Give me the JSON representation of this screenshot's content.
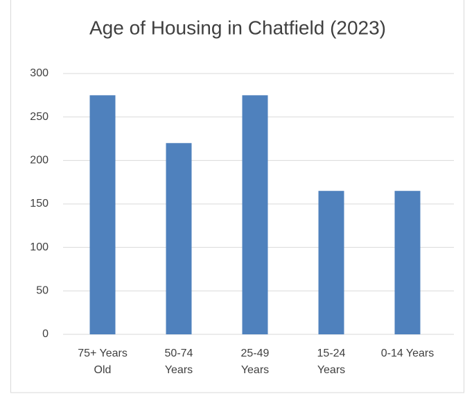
{
  "chart_data": {
    "type": "bar",
    "title": "Age of Housing in Chatfield (2023)",
    "categories": [
      "75+ Years Old",
      "50-74 Years",
      "25-49 Years",
      "15-24 Years",
      "0-14 Years"
    ],
    "values": [
      275,
      220,
      275,
      165,
      165
    ],
    "color": "#4f81bd",
    "ylim": [
      0,
      300
    ],
    "yticks": [
      0,
      50,
      100,
      150,
      200,
      250,
      300
    ],
    "grid": true
  }
}
